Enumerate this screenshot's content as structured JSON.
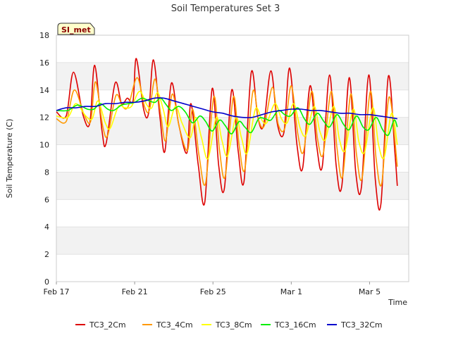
{
  "chart_data": {
    "type": "line",
    "title": "Soil Temperatures Set 3",
    "xlabel": "Time",
    "ylabel": "Soil Temperature (C)",
    "badge": "SI_met",
    "ylim": [
      0,
      18
    ],
    "yticks": [
      0,
      2,
      4,
      6,
      8,
      10,
      12,
      14,
      16,
      18
    ],
    "xlim": [
      "2023-02-17",
      "2023-03-07"
    ],
    "xticks": [
      {
        "date": "2023-02-17",
        "label": "Feb 17"
      },
      {
        "date": "2023-02-21",
        "label": "Feb 21"
      },
      {
        "date": "2023-02-25",
        "label": "Feb 25"
      },
      {
        "date": "2023-03-01",
        "label": "Mar 1"
      },
      {
        "date": "2023-03-05",
        "label": "Mar 5"
      }
    ],
    "legend_position": "bottom",
    "grid": "alternating horizontal bands",
    "series": [
      {
        "name": "TC3_2Cm",
        "color": "#dd0000",
        "points": [
          [
            "2023-02-17T00:00",
            12.4
          ],
          [
            "2023-02-17T12:00",
            12.1
          ],
          [
            "2023-02-17T21:00",
            15.3
          ],
          [
            "2023-02-18T09:00",
            12.1
          ],
          [
            "2023-02-18T17:00",
            11.6
          ],
          [
            "2023-02-18T23:00",
            15.8
          ],
          [
            "2023-02-19T08:00",
            11.0
          ],
          [
            "2023-02-19T13:00",
            10.1
          ],
          [
            "2023-02-20T00:00",
            14.5
          ],
          [
            "2023-02-20T08:00",
            13.0
          ],
          [
            "2023-02-20T15:00",
            13.4
          ],
          [
            "2023-02-20T22:00",
            13.2
          ],
          [
            "2023-02-21T02:00",
            16.3
          ],
          [
            "2023-02-21T11:00",
            12.6
          ],
          [
            "2023-02-21T17:00",
            12.3
          ],
          [
            "2023-02-21T23:00",
            16.2
          ],
          [
            "2023-02-22T07:00",
            12.0
          ],
          [
            "2023-02-22T13:00",
            9.5
          ],
          [
            "2023-02-22T21:00",
            14.5
          ],
          [
            "2023-02-23T06:00",
            11.5
          ],
          [
            "2023-02-23T16:00",
            9.4
          ],
          [
            "2023-02-23T21:00",
            13.0
          ],
          [
            "2023-02-24T06:00",
            8.5
          ],
          [
            "2023-02-24T14:00",
            5.8
          ],
          [
            "2023-02-24T23:00",
            14.1
          ],
          [
            "2023-02-25T07:00",
            8.5
          ],
          [
            "2023-02-25T14:00",
            6.8
          ],
          [
            "2023-02-25T23:00",
            14.0
          ],
          [
            "2023-02-26T07:00",
            9.5
          ],
          [
            "2023-02-26T14:00",
            7.3
          ],
          [
            "2023-02-26T23:00",
            15.3
          ],
          [
            "2023-02-27T07:00",
            12.0
          ],
          [
            "2023-02-27T14:00",
            11.4
          ],
          [
            "2023-02-27T23:00",
            15.4
          ],
          [
            "2023-02-28T07:00",
            11.5
          ],
          [
            "2023-02-28T15:00",
            10.9
          ],
          [
            "2023-02-28T22:00",
            15.6
          ],
          [
            "2023-03-01T07:00",
            10.0
          ],
          [
            "2023-03-01T14:00",
            8.3
          ],
          [
            "2023-03-01T23:00",
            14.3
          ],
          [
            "2023-03-02T07:00",
            10.0
          ],
          [
            "2023-03-02T14:00",
            8.4
          ],
          [
            "2023-03-02T23:00",
            15.1
          ],
          [
            "2023-03-03T07:00",
            8.5
          ],
          [
            "2023-03-03T14:00",
            7.0
          ],
          [
            "2023-03-03T23:00",
            14.9
          ],
          [
            "2023-03-04T07:00",
            8.0
          ],
          [
            "2023-03-04T14:00",
            6.9
          ],
          [
            "2023-03-04T23:00",
            15.1
          ],
          [
            "2023-03-05T07:00",
            7.5
          ],
          [
            "2023-03-05T14:00",
            5.7
          ],
          [
            "2023-03-05T23:00",
            15.0
          ],
          [
            "2023-03-06T07:00",
            9.5
          ],
          [
            "2023-03-06T10:00",
            7.0
          ]
        ]
      },
      {
        "name": "TC3_4Cm",
        "color": "#ff9900",
        "points": [
          [
            "2023-02-17T00:00",
            11.9
          ],
          [
            "2023-02-17T12:00",
            11.7
          ],
          [
            "2023-02-17T22:00",
            14.0
          ],
          [
            "2023-02-18T10:00",
            12.2
          ],
          [
            "2023-02-18T18:00",
            11.7
          ],
          [
            "2023-02-19T00:00",
            14.6
          ],
          [
            "2023-02-19T09:00",
            11.3
          ],
          [
            "2023-02-19T15:00",
            10.7
          ],
          [
            "2023-02-20T01:00",
            13.6
          ],
          [
            "2023-02-20T09:00",
            12.8
          ],
          [
            "2023-02-20T16:00",
            12.8
          ],
          [
            "2023-02-21T03:00",
            14.9
          ],
          [
            "2023-02-21T12:00",
            12.8
          ],
          [
            "2023-02-21T18:00",
            12.5
          ],
          [
            "2023-02-22T01:00",
            14.8
          ],
          [
            "2023-02-22T08:00",
            12.2
          ],
          [
            "2023-02-22T14:00",
            10.3
          ],
          [
            "2023-02-22T22:00",
            13.7
          ],
          [
            "2023-02-23T07:00",
            11.2
          ],
          [
            "2023-02-23T17:00",
            9.6
          ],
          [
            "2023-02-23T23:00",
            12.6
          ],
          [
            "2023-02-24T07:00",
            9.2
          ],
          [
            "2023-02-24T15:00",
            7.2
          ],
          [
            "2023-02-25T01:00",
            13.5
          ],
          [
            "2023-02-25T08:00",
            9.6
          ],
          [
            "2023-02-25T15:00",
            7.7
          ],
          [
            "2023-02-26T01:00",
            13.5
          ],
          [
            "2023-02-26T08:00",
            10.0
          ],
          [
            "2023-02-26T15:00",
            8.2
          ],
          [
            "2023-02-27T01:00",
            13.9
          ],
          [
            "2023-02-27T08:00",
            11.8
          ],
          [
            "2023-02-27T15:00",
            11.4
          ],
          [
            "2023-02-28T01:00",
            14.2
          ],
          [
            "2023-02-28T08:00",
            11.5
          ],
          [
            "2023-02-28T16:00",
            11.2
          ],
          [
            "2023-03-01T00:00",
            14.3
          ],
          [
            "2023-03-01T08:00",
            10.8
          ],
          [
            "2023-03-01T15:00",
            9.5
          ],
          [
            "2023-03-02T01:00",
            13.9
          ],
          [
            "2023-03-02T08:00",
            10.5
          ],
          [
            "2023-03-02T15:00",
            9.3
          ],
          [
            "2023-03-03T01:00",
            13.9
          ],
          [
            "2023-03-03T08:00",
            9.8
          ],
          [
            "2023-03-03T15:00",
            7.7
          ],
          [
            "2023-03-04T01:00",
            13.7
          ],
          [
            "2023-03-04T08:00",
            9.3
          ],
          [
            "2023-03-04T15:00",
            7.6
          ],
          [
            "2023-03-05T01:00",
            13.9
          ],
          [
            "2023-03-05T08:00",
            9.0
          ],
          [
            "2023-03-05T15:00",
            7.2
          ],
          [
            "2023-03-06T00:00",
            13.5
          ],
          [
            "2023-03-06T10:00",
            8.4
          ]
        ]
      },
      {
        "name": "TC3_8Cm",
        "color": "#ffff00",
        "points": [
          [
            "2023-02-17T00:00",
            12.1
          ],
          [
            "2023-02-17T14:00",
            12.0
          ],
          [
            "2023-02-18T00:00",
            13.0
          ],
          [
            "2023-02-18T12:00",
            12.1
          ],
          [
            "2023-02-18T20:00",
            11.9
          ],
          [
            "2023-02-19T03:00",
            13.2
          ],
          [
            "2023-02-19T12:00",
            11.6
          ],
          [
            "2023-02-19T18:00",
            11.2
          ],
          [
            "2023-02-20T04:00",
            12.8
          ],
          [
            "2023-02-20T12:00",
            12.7
          ],
          [
            "2023-02-20T20:00",
            12.8
          ],
          [
            "2023-02-21T06:00",
            13.9
          ],
          [
            "2023-02-21T15:00",
            12.9
          ],
          [
            "2023-02-21T21:00",
            12.7
          ],
          [
            "2023-02-22T04:00",
            13.8
          ],
          [
            "2023-02-22T11:00",
            12.6
          ],
          [
            "2023-02-22T17:00",
            11.3
          ],
          [
            "2023-02-23T02:00",
            12.8
          ],
          [
            "2023-02-23T10:00",
            11.6
          ],
          [
            "2023-02-23T20:00",
            10.5
          ],
          [
            "2023-02-24T03:00",
            12.0
          ],
          [
            "2023-02-24T10:00",
            10.5
          ],
          [
            "2023-02-24T18:00",
            9.0
          ],
          [
            "2023-02-25T04:00",
            12.0
          ],
          [
            "2023-02-25T11:00",
            10.3
          ],
          [
            "2023-02-25T18:00",
            9.2
          ],
          [
            "2023-02-26T04:00",
            12.0
          ],
          [
            "2023-02-26T11:00",
            10.5
          ],
          [
            "2023-02-26T18:00",
            9.4
          ],
          [
            "2023-02-27T04:00",
            12.6
          ],
          [
            "2023-02-27T12:00",
            11.8
          ],
          [
            "2023-02-27T18:00",
            11.6
          ],
          [
            "2023-02-28T04:00",
            13.0
          ],
          [
            "2023-02-28T12:00",
            11.9
          ],
          [
            "2023-02-28T19:00",
            11.6
          ],
          [
            "2023-03-01T03:00",
            13.0
          ],
          [
            "2023-03-01T11:00",
            11.2
          ],
          [
            "2023-03-01T18:00",
            10.7
          ],
          [
            "2023-03-02T04:00",
            12.8
          ],
          [
            "2023-03-02T11:00",
            11.0
          ],
          [
            "2023-03-02T18:00",
            10.4
          ],
          [
            "2023-03-03T04:00",
            12.8
          ],
          [
            "2023-03-03T11:00",
            10.4
          ],
          [
            "2023-03-03T18:00",
            9.6
          ],
          [
            "2023-03-04T04:00",
            12.6
          ],
          [
            "2023-03-04T11:00",
            10.2
          ],
          [
            "2023-03-04T18:00",
            9.5
          ],
          [
            "2023-03-05T04:00",
            12.7
          ],
          [
            "2023-03-05T11:00",
            10.0
          ],
          [
            "2023-03-05T18:00",
            9.1
          ],
          [
            "2023-03-06T03:00",
            12.3
          ],
          [
            "2023-03-06T10:00",
            10.0
          ]
        ]
      },
      {
        "name": "TC3_16Cm",
        "color": "#00ee00",
        "points": [
          [
            "2023-02-17T00:00",
            12.5
          ],
          [
            "2023-02-17T14:00",
            12.5
          ],
          [
            "2023-02-18T02:00",
            12.9
          ],
          [
            "2023-02-18T14:00",
            12.6
          ],
          [
            "2023-02-18T22:00",
            12.6
          ],
          [
            "2023-02-19T06:00",
            13.0
          ],
          [
            "2023-02-19T15:00",
            12.6
          ],
          [
            "2023-02-19T22:00",
            12.5
          ],
          [
            "2023-02-20T08:00",
            12.9
          ],
          [
            "2023-02-20T16:00",
            13.0
          ],
          [
            "2023-02-21T00:00",
            13.1
          ],
          [
            "2023-02-21T09:00",
            13.4
          ],
          [
            "2023-02-21T18:00",
            13.2
          ],
          [
            "2023-02-22T01:00",
            13.1
          ],
          [
            "2023-02-22T08:00",
            13.4
          ],
          [
            "2023-02-22T15:00",
            12.9
          ],
          [
            "2023-02-22T21:00",
            12.5
          ],
          [
            "2023-02-23T06:00",
            12.8
          ],
          [
            "2023-02-23T14:00",
            12.4
          ],
          [
            "2023-02-23T23:00",
            11.6
          ],
          [
            "2023-02-24T08:00",
            12.1
          ],
          [
            "2023-02-24T15:00",
            11.7
          ],
          [
            "2023-02-24T23:00",
            11.0
          ],
          [
            "2023-02-25T08:00",
            11.8
          ],
          [
            "2023-02-25T15:00",
            11.4
          ],
          [
            "2023-02-25T23:00",
            10.8
          ],
          [
            "2023-02-26T08:00",
            11.7
          ],
          [
            "2023-02-26T15:00",
            11.3
          ],
          [
            "2023-02-26T23:00",
            10.9
          ],
          [
            "2023-02-27T08:00",
            11.9
          ],
          [
            "2023-02-27T16:00",
            11.9
          ],
          [
            "2023-02-27T23:00",
            11.8
          ],
          [
            "2023-02-28T08:00",
            12.5
          ],
          [
            "2023-02-28T16:00",
            12.2
          ],
          [
            "2023-02-28T23:00",
            12.1
          ],
          [
            "2023-03-01T08:00",
            12.7
          ],
          [
            "2023-03-01T16:00",
            11.9
          ],
          [
            "2023-03-01T23:00",
            11.5
          ],
          [
            "2023-03-02T08:00",
            12.3
          ],
          [
            "2023-03-02T16:00",
            11.7
          ],
          [
            "2023-03-02T23:00",
            11.3
          ],
          [
            "2023-03-03T08:00",
            12.2
          ],
          [
            "2023-03-03T16:00",
            11.5
          ],
          [
            "2023-03-03T23:00",
            11.1
          ],
          [
            "2023-03-04T08:00",
            12.1
          ],
          [
            "2023-03-04T16:00",
            11.3
          ],
          [
            "2023-03-04T23:00",
            11.1
          ],
          [
            "2023-03-05T08:00",
            12.0
          ],
          [
            "2023-03-05T16:00",
            11.1
          ],
          [
            "2023-03-05T23:00",
            10.7
          ],
          [
            "2023-03-06T06:00",
            11.8
          ],
          [
            "2023-03-06T10:00",
            11.3
          ]
        ]
      },
      {
        "name": "TC3_32Cm",
        "color": "#0000cc",
        "points": [
          [
            "2023-02-17T00:00",
            12.5
          ],
          [
            "2023-02-17T12:00",
            12.7
          ],
          [
            "2023-02-18T00:00",
            12.7
          ],
          [
            "2023-02-18T12:00",
            12.8
          ],
          [
            "2023-02-19T00:00",
            12.8
          ],
          [
            "2023-02-19T12:00",
            13.0
          ],
          [
            "2023-02-20T00:00",
            13.0
          ],
          [
            "2023-02-20T12:00",
            13.1
          ],
          [
            "2023-02-21T00:00",
            13.1
          ],
          [
            "2023-02-21T12:00",
            13.2
          ],
          [
            "2023-02-22T00:00",
            13.4
          ],
          [
            "2023-02-22T12:00",
            13.4
          ],
          [
            "2023-02-23T00:00",
            13.2
          ],
          [
            "2023-02-23T12:00",
            13.0
          ],
          [
            "2023-02-24T00:00",
            12.8
          ],
          [
            "2023-02-24T12:00",
            12.6
          ],
          [
            "2023-02-25T00:00",
            12.4
          ],
          [
            "2023-02-25T12:00",
            12.3
          ],
          [
            "2023-02-26T00:00",
            12.1
          ],
          [
            "2023-02-26T12:00",
            12.0
          ],
          [
            "2023-02-27T00:00",
            12.0
          ],
          [
            "2023-02-27T12:00",
            12.2
          ],
          [
            "2023-02-28T00:00",
            12.4
          ],
          [
            "2023-02-28T12:00",
            12.5
          ],
          [
            "2023-03-01T00:00",
            12.6
          ],
          [
            "2023-03-01T12:00",
            12.6
          ],
          [
            "2023-03-02T00:00",
            12.5
          ],
          [
            "2023-03-02T12:00",
            12.5
          ],
          [
            "2023-03-03T00:00",
            12.4
          ],
          [
            "2023-03-03T12:00",
            12.3
          ],
          [
            "2023-03-04T00:00",
            12.3
          ],
          [
            "2023-03-04T12:00",
            12.2
          ],
          [
            "2023-03-05T00:00",
            12.2
          ],
          [
            "2023-03-05T12:00",
            12.1
          ],
          [
            "2023-03-06T00:00",
            12.0
          ],
          [
            "2023-03-06T10:00",
            11.9
          ]
        ]
      }
    ]
  }
}
